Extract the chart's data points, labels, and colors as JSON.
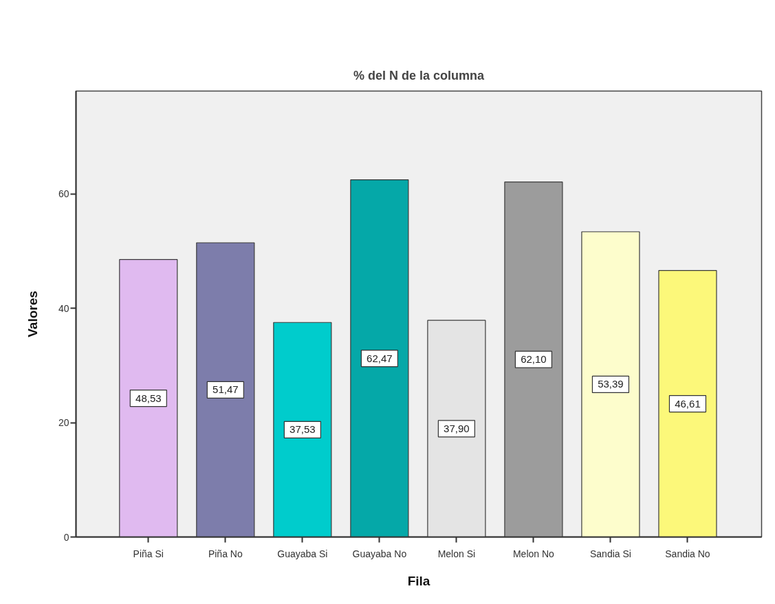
{
  "chart_data": {
    "type": "bar",
    "title": "% del N de la columna",
    "xlabel": "Fila",
    "ylabel": "Valores",
    "categories": [
      "Piña Si",
      "Piña No",
      "Guayaba Si",
      "Guayaba No",
      "Melon Si",
      "Melon No",
      "Sandia Si",
      "Sandia No"
    ],
    "values": [
      48.53,
      51.47,
      37.53,
      62.47,
      37.9,
      62.1,
      53.39,
      46.61
    ],
    "colors": [
      "#e0baf0",
      "#7d7dab",
      "#00cccc",
      "#05a8a8",
      "#e4e4e4",
      "#9c9c9c",
      "#fdfdcc",
      "#fcf87a"
    ],
    "value_labels": [
      "48,53",
      "51,47",
      "37,53",
      "62,47",
      "37,90",
      "62,10",
      "53,39",
      "46,61"
    ],
    "ylim": [
      0,
      78
    ],
    "yticks": [
      0,
      20,
      40,
      60
    ]
  }
}
